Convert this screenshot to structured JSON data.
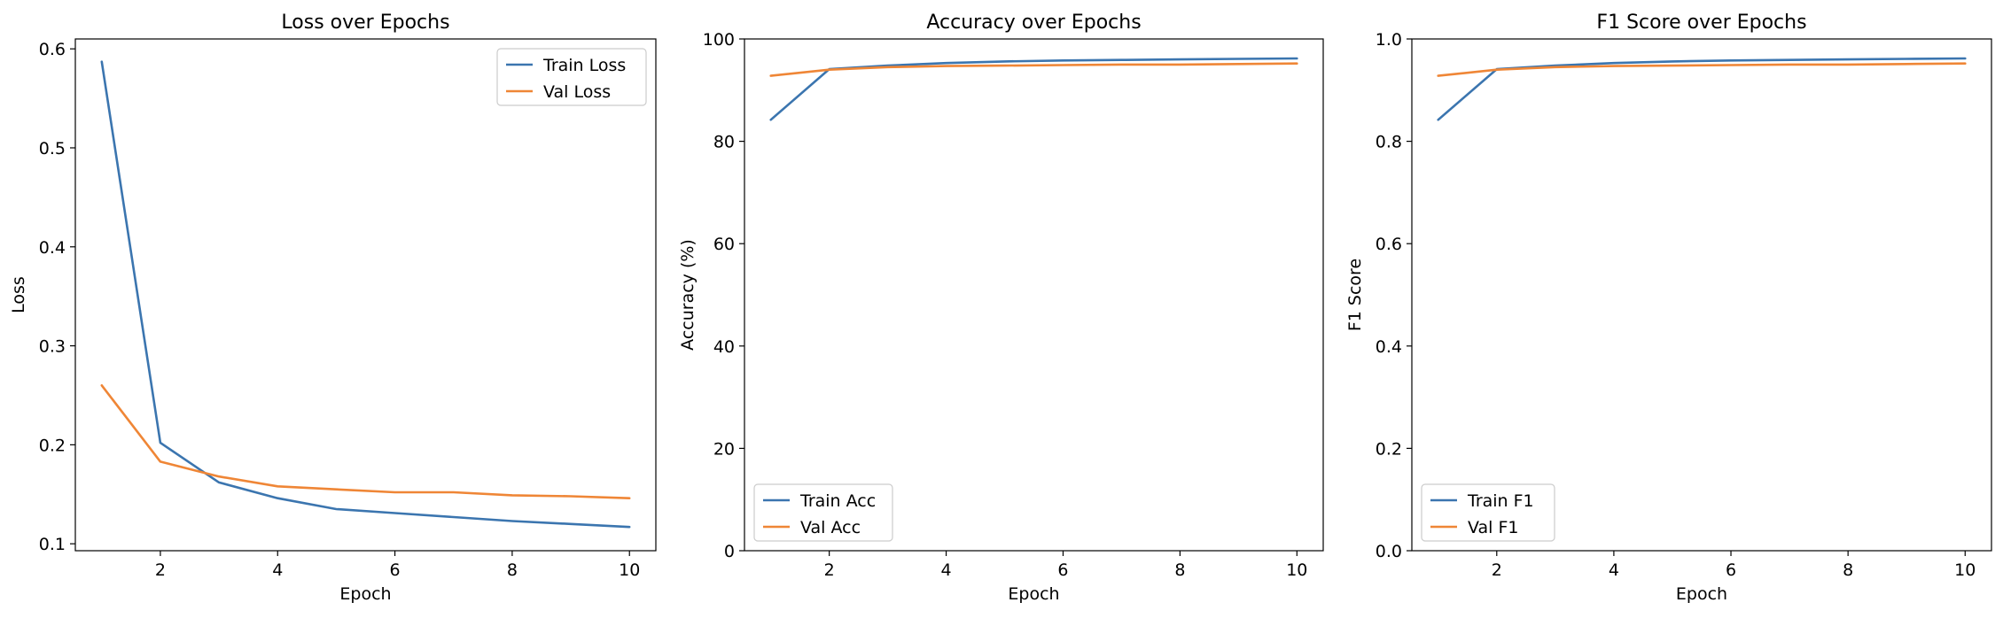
{
  "colors": {
    "train": "#3b75af",
    "val": "#ef8636"
  },
  "chart_data": [
    {
      "type": "line",
      "title": "Loss over Epochs",
      "xlabel": "Epoch",
      "ylabel": "Loss",
      "x": [
        1,
        2,
        3,
        4,
        5,
        6,
        7,
        8,
        9,
        10
      ],
      "xlim": [
        0.55,
        10.45
      ],
      "ylim": [
        0.093,
        0.61
      ],
      "xticks": [
        2,
        4,
        6,
        8,
        10
      ],
      "xtick_labels": [
        "2",
        "4",
        "6",
        "8",
        "10"
      ],
      "yticks": [
        0.1,
        0.2,
        0.3,
        0.4,
        0.5,
        0.6
      ],
      "ytick_labels": [
        "0.1",
        "0.2",
        "0.3",
        "0.4",
        "0.5",
        "0.6"
      ],
      "grid": false,
      "legend_position": "upper-right",
      "series": [
        {
          "name": "Train Loss",
          "color": "#3b75af",
          "values": [
            0.587,
            0.202,
            0.162,
            0.146,
            0.135,
            0.131,
            0.127,
            0.123,
            0.12,
            0.117
          ]
        },
        {
          "name": "Val Loss",
          "color": "#ef8636",
          "values": [
            0.26,
            0.183,
            0.168,
            0.158,
            0.155,
            0.152,
            0.152,
            0.149,
            0.148,
            0.146
          ]
        }
      ]
    },
    {
      "type": "line",
      "title": "Accuracy over Epochs",
      "xlabel": "Epoch",
      "ylabel": "Accuracy (%)",
      "x": [
        1,
        2,
        3,
        4,
        5,
        6,
        7,
        8,
        9,
        10
      ],
      "xlim": [
        0.55,
        10.45
      ],
      "ylim": [
        0,
        100
      ],
      "xticks": [
        2,
        4,
        6,
        8,
        10
      ],
      "xtick_labels": [
        "2",
        "4",
        "6",
        "8",
        "10"
      ],
      "yticks": [
        0,
        20,
        40,
        60,
        80,
        100
      ],
      "ytick_labels": [
        "0",
        "20",
        "40",
        "60",
        "80",
        "100"
      ],
      "grid": false,
      "legend_position": "lower-left",
      "series": [
        {
          "name": "Train Acc",
          "color": "#3b75af",
          "values": [
            84.2,
            94.1,
            94.8,
            95.3,
            95.6,
            95.8,
            95.9,
            96.0,
            96.1,
            96.2
          ]
        },
        {
          "name": "Val Acc",
          "color": "#ef8636",
          "values": [
            92.8,
            94.0,
            94.5,
            94.7,
            94.8,
            94.9,
            95.0,
            95.0,
            95.1,
            95.2
          ]
        }
      ]
    },
    {
      "type": "line",
      "title": "F1 Score over Epochs",
      "xlabel": "Epoch",
      "ylabel": "F1 Score",
      "x": [
        1,
        2,
        3,
        4,
        5,
        6,
        7,
        8,
        9,
        10
      ],
      "xlim": [
        0.55,
        10.45
      ],
      "ylim": [
        0,
        1
      ],
      "xticks": [
        2,
        4,
        6,
        8,
        10
      ],
      "xtick_labels": [
        "2",
        "4",
        "6",
        "8",
        "10"
      ],
      "yticks": [
        0,
        0.2,
        0.4,
        0.6,
        0.8,
        1.0
      ],
      "ytick_labels": [
        "0.0",
        "0.2",
        "0.4",
        "0.6",
        "0.8",
        "1.0"
      ],
      "grid": false,
      "legend_position": "lower-left",
      "series": [
        {
          "name": "Train F1",
          "color": "#3b75af",
          "values": [
            0.842,
            0.941,
            0.948,
            0.953,
            0.956,
            0.958,
            0.959,
            0.96,
            0.961,
            0.962
          ]
        },
        {
          "name": "Val F1",
          "color": "#ef8636",
          "values": [
            0.928,
            0.94,
            0.945,
            0.947,
            0.948,
            0.949,
            0.95,
            0.95,
            0.951,
            0.952
          ]
        }
      ]
    }
  ]
}
